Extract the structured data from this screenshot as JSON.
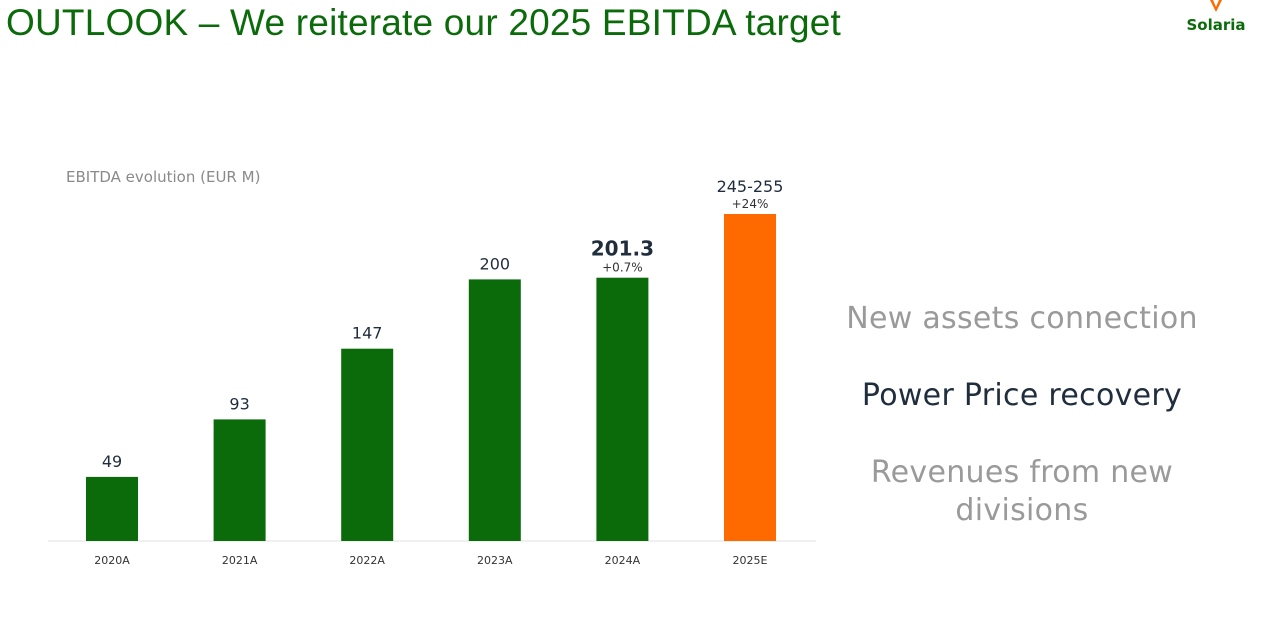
{
  "slide": {
    "title": "OUTLOOK – We reiterate our 2025 EBITDA target"
  },
  "brand": {
    "name": "Solaria",
    "accent_green": "#0b6b0b",
    "accent_orange": "#ff6a00"
  },
  "drivers": [
    {
      "text": "New assets connection",
      "emphasis": "muted"
    },
    {
      "text": "Power Price recovery",
      "emphasis": "strong"
    },
    {
      "text": "Revenues from new divisions",
      "emphasis": "muted"
    }
  ],
  "chart_data": {
    "type": "bar",
    "title": "EBITDA evolution (EUR M)",
    "xlabel": "",
    "ylabel": "",
    "categories": [
      "2020A",
      "2021A",
      "2022A",
      "2023A",
      "2024A",
      "2025E"
    ],
    "values": [
      49,
      93,
      147,
      200,
      201.3,
      250
    ],
    "labels": [
      "49",
      "93",
      "147",
      "200",
      "201.3",
      "245-255"
    ],
    "growth_labels": [
      "",
      "",
      "",
      "",
      "+0.7%",
      "+24%"
    ],
    "bold_labels": [
      false,
      false,
      false,
      false,
      true,
      false
    ],
    "colors": [
      "#0b6b0b",
      "#0b6b0b",
      "#0b6b0b",
      "#0b6b0b",
      "#0b6b0b",
      "#ff6a00"
    ],
    "ylim": [
      0,
      250
    ],
    "grid": false,
    "legend": "none"
  }
}
